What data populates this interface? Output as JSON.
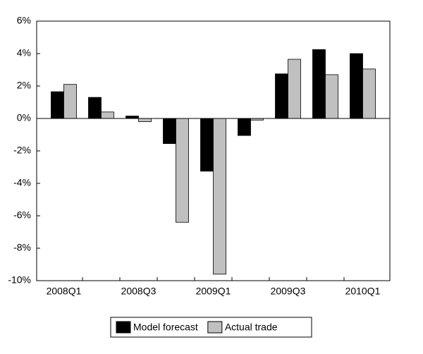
{
  "chart_data": {
    "type": "bar",
    "categories": [
      "2008Q1",
      null,
      "2008Q3",
      null,
      "2009Q1",
      null,
      "2009Q3",
      null,
      "2010Q1"
    ],
    "series": [
      {
        "name": "Model forecast",
        "color": "#000000",
        "values": [
          1.65,
          1.3,
          0.15,
          -1.55,
          -3.25,
          -1.05,
          2.75,
          4.25,
          4.0
        ]
      },
      {
        "name": "Actual trade",
        "color": "#c0c0c0",
        "values": [
          2.1,
          0.4,
          -0.2,
          -6.4,
          -9.6,
          -0.1,
          3.65,
          2.7,
          3.05
        ]
      }
    ],
    "ylim": [
      -10,
      6
    ],
    "yticks": [
      {
        "value": -10,
        "label": "-10%"
      },
      {
        "value": -8,
        "label": "-8%"
      },
      {
        "value": -6,
        "label": "-6%"
      },
      {
        "value": -4,
        "label": "-4%"
      },
      {
        "value": -2,
        "label": "-2%"
      },
      {
        "value": 0,
        "label": "0%"
      },
      {
        "value": 2,
        "label": "2%"
      },
      {
        "value": 4,
        "label": "4%"
      },
      {
        "value": 6,
        "label": "6%"
      }
    ],
    "legend": "bottom"
  }
}
